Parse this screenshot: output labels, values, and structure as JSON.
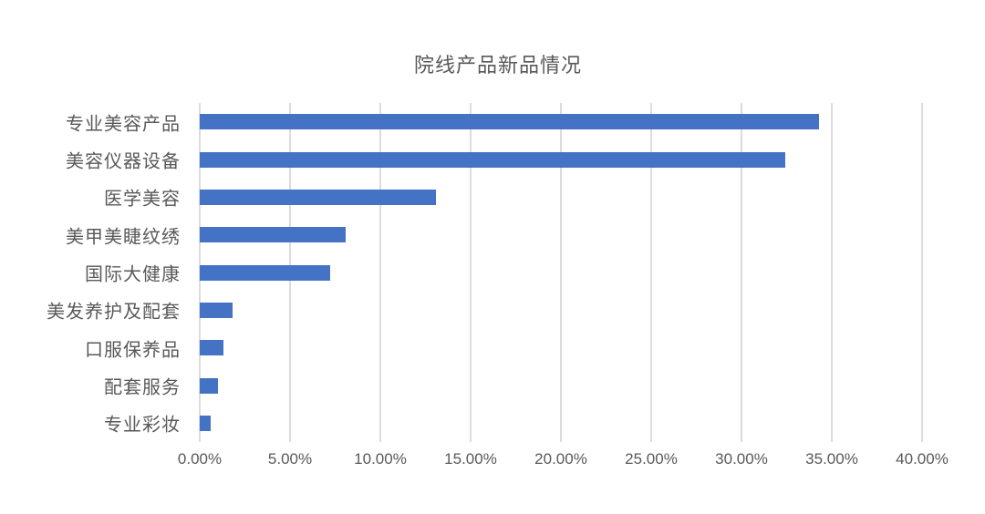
{
  "chart_data": {
    "type": "bar",
    "orientation": "horizontal",
    "title": "院线产品新品情况",
    "categories": [
      "专业美容产品",
      "美容仪器设备",
      "医学美容",
      "美甲美睫纹绣",
      "国际大健康",
      "美发养护及配套",
      "口服保养品",
      "配套服务",
      "专业彩妆"
    ],
    "values": [
      34.3,
      32.4,
      13.1,
      8.1,
      7.2,
      1.8,
      1.3,
      1.0,
      0.6
    ],
    "value_unit": "%",
    "xlim": [
      0,
      40
    ],
    "x_ticks": [
      {
        "label": "0.00%",
        "value": 0
      },
      {
        "label": "5.00%",
        "value": 5
      },
      {
        "label": "10.00%",
        "value": 10
      },
      {
        "label": "15.00%",
        "value": 15
      },
      {
        "label": "20.00%",
        "value": 20
      },
      {
        "label": "25.00%",
        "value": 25
      },
      {
        "label": "30.00%",
        "value": 30
      },
      {
        "label": "35.00%",
        "value": 35
      },
      {
        "label": "40.00%",
        "value": 40
      }
    ],
    "grid": "vertical-gridlines-on",
    "legend": "none",
    "bar_color": "#4472C4",
    "gridline_color": "#DCDCDC",
    "text_color": "#595959"
  }
}
